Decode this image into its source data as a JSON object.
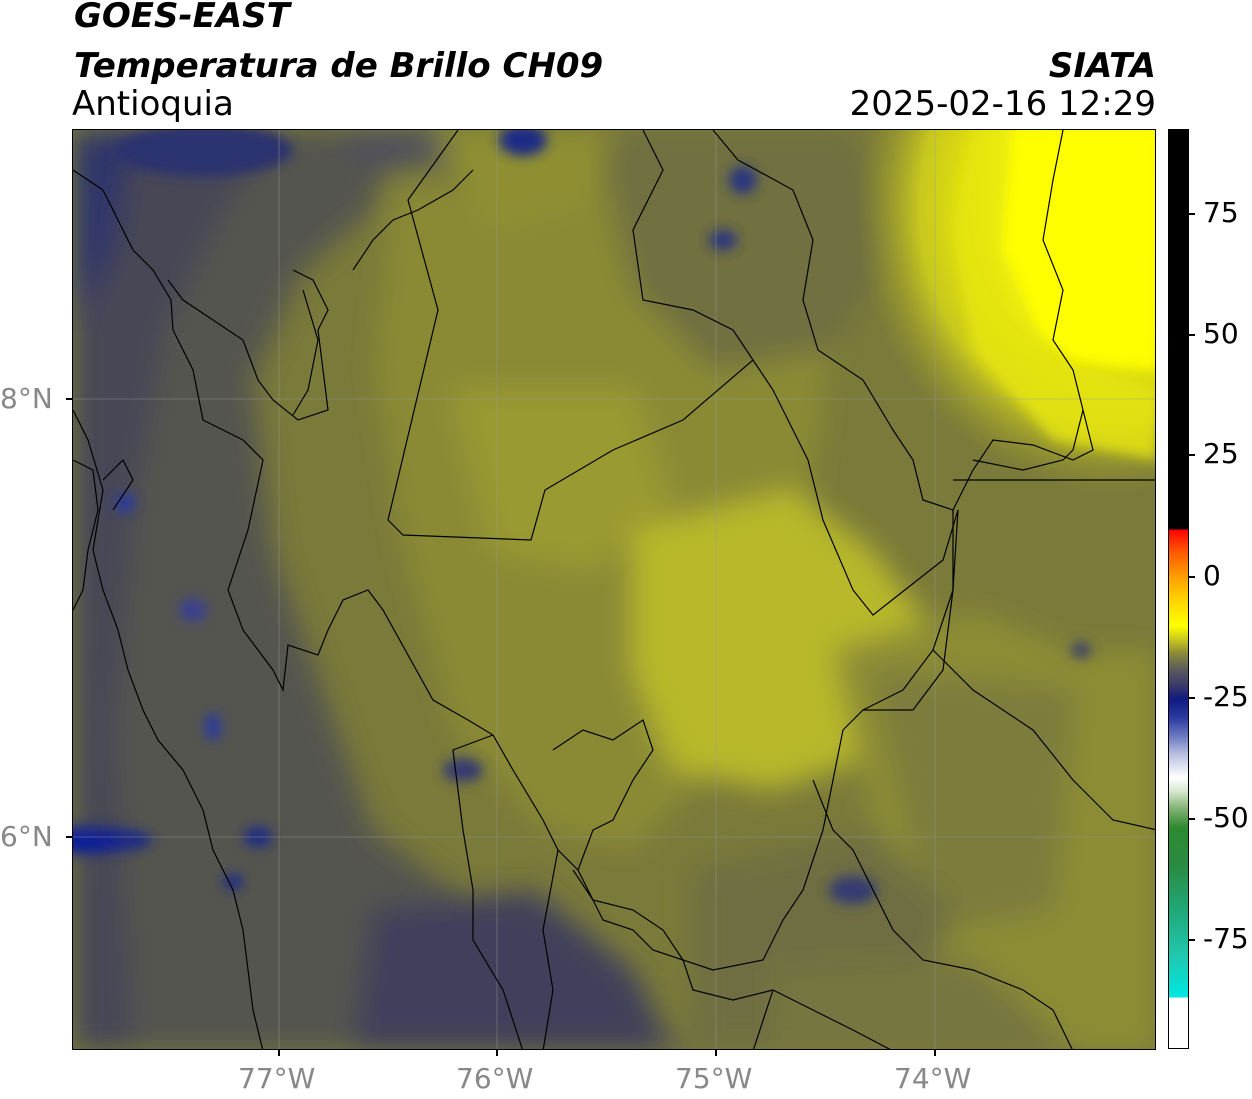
{
  "header": {
    "satellite": "GOES-EAST",
    "product": "Temperatura de Brillo CH09",
    "region": "Antioquia",
    "agency": "SIATA",
    "datetime": "2025-02-16 12:29"
  },
  "map": {
    "lat_labels": [
      "8°N",
      "6°N"
    ],
    "lon_labels": [
      "77°W",
      "76°W",
      "75°W",
      "74°W"
    ],
    "grid": true,
    "colors": {
      "cold_navy": "#232b6e",
      "dark_gray": "#4a4a55",
      "olive_dark": "#6b6b3a",
      "olive": "#8e8e30",
      "yellow_olive": "#b8b82a",
      "bright_yellow": "#ffff00",
      "boundary": "#000000"
    }
  },
  "colorbar": {
    "ticks": [
      "75",
      "50",
      "25",
      "0",
      "-25",
      "-50",
      "-75"
    ]
  }
}
